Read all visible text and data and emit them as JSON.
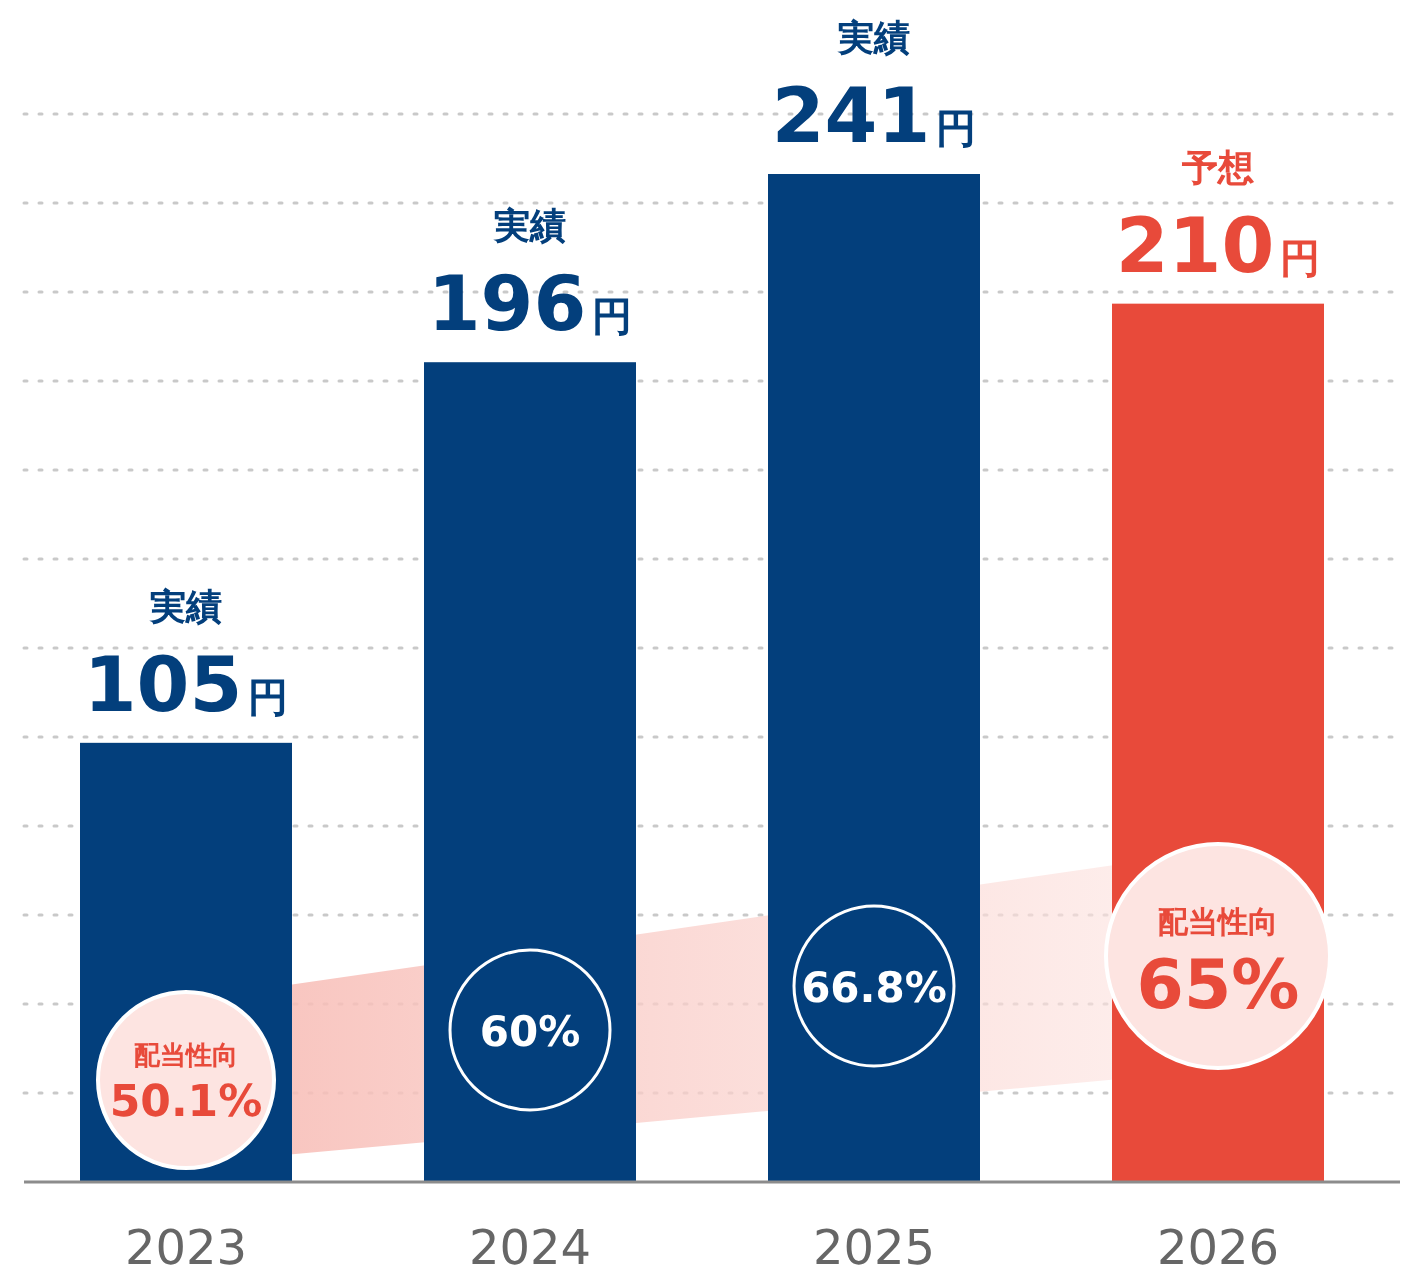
{
  "chart_data": {
    "type": "bar",
    "categories": [
      "2023",
      "2024",
      "2025",
      "2026"
    ],
    "values": [
      105,
      196,
      241,
      210
    ],
    "colors": [
      "#033f7c",
      "#033f7c",
      "#033f7c",
      "#e84a3a"
    ],
    "value_labels": [
      "実績 105円",
      "実績 196円",
      "実績 241円",
      "予想 210円"
    ],
    "grid": "y",
    "annotations": [
      "配当性向 50.1%",
      "60%",
      "66.8%",
      "配当性向 65%"
    ]
  }
}
